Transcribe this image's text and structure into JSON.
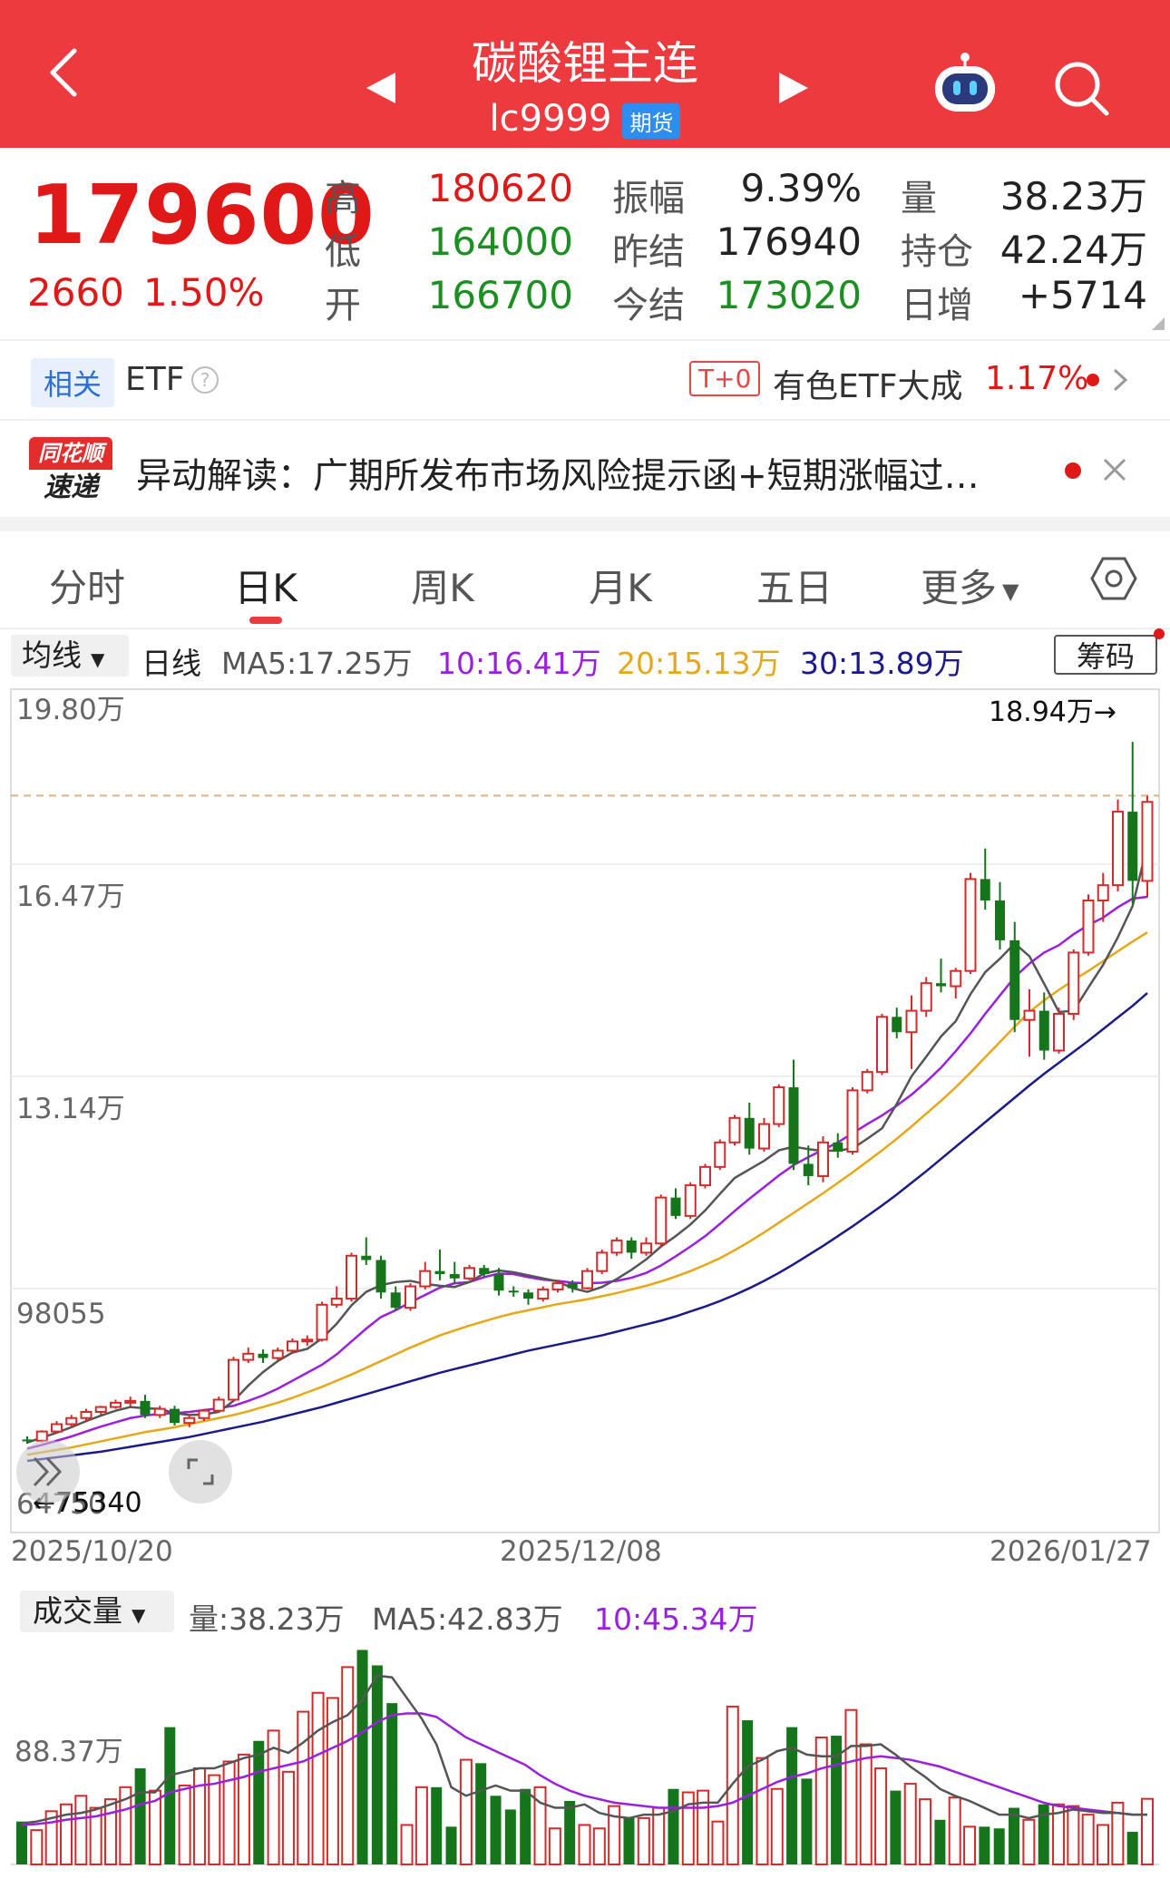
{
  "header": {
    "title": "碳酸锂主连",
    "code": "lc9999",
    "tag": "期货",
    "colors": {
      "bg": "#ec3a3f"
    }
  },
  "quote": {
    "price": "179600",
    "change": "2660",
    "change_pct": "1.50%",
    "stats": [
      {
        "label": "高",
        "value": "180620",
        "color": "red"
      },
      {
        "label": "振幅",
        "value": "9.39%",
        "color": "black"
      },
      {
        "label": "量",
        "value": "38.23万",
        "color": "black"
      },
      {
        "label": "低",
        "value": "164000",
        "color": "green"
      },
      {
        "label": "昨结",
        "value": "176940",
        "color": "black"
      },
      {
        "label": "持仓",
        "value": "42.24万",
        "color": "black"
      },
      {
        "label": "开",
        "value": "166700",
        "color": "green"
      },
      {
        "label": "今结",
        "value": "173020",
        "color": "green"
      },
      {
        "label": "日增",
        "value": "+5714",
        "color": "black"
      }
    ]
  },
  "related": {
    "tag": "相关",
    "label": "ETF",
    "t0": "T+0",
    "etf_name": "有色ETF大成",
    "etf_pct": "1.17%"
  },
  "news": {
    "logo_top": "同花顺",
    "logo_bottom": "速递",
    "text": "异动解读：广期所发布市场风险提示函+短期涨幅过…"
  },
  "tabs": [
    "分时",
    "日K",
    "周K",
    "月K",
    "五日",
    "更多"
  ],
  "active_tab": "日K",
  "ma_row": {
    "selector": "均线",
    "period": "日线",
    "ma5": "MA5:17.25万",
    "ma10": "10:16.41万",
    "ma20": "20:15.13万",
    "ma30": "30:13.89万",
    "chip_button": "筹码",
    "colors": {
      "ma5": "#555555",
      "ma10": "#9b1fe0",
      "ma20": "#e6a817",
      "ma30": "#1a1a8c"
    }
  },
  "kline_axis": {
    "y_labels": [
      "19.80万",
      "16.47万",
      "13.14万",
      "98055",
      "64750"
    ],
    "high_marker": "18.94万→",
    "low_marker": "←75340",
    "x_labels": [
      "2025/10/20",
      "2025/12/08",
      "2026/01/27"
    ]
  },
  "volume_row": {
    "selector": "成交量",
    "vol": "量:38.23万",
    "ma5": "MA5:42.83万",
    "ma10": "10:45.34万",
    "y_label": "88.37万"
  },
  "chart_data": [
    {
      "type": "candlestick",
      "x_start": "2025/10/20",
      "x_mid": "2025/12/08",
      "x_end": "2026/01/27",
      "y_unit": "元",
      "ylim": [
        64750,
        198000
      ],
      "candles": [
        [
          75500,
          76000,
          74800,
          75340
        ],
        [
          75300,
          77000,
          75000,
          76800
        ],
        [
          76800,
          78500,
          76500,
          78000
        ],
        [
          78000,
          79500,
          77500,
          79000
        ],
        [
          79000,
          80500,
          78500,
          80000
        ],
        [
          80000,
          81000,
          79500,
          80800
        ],
        [
          80800,
          82000,
          80500,
          81500
        ],
        [
          81500,
          82500,
          80800,
          81800
        ],
        [
          81800,
          82800,
          79000,
          79500
        ],
        [
          79500,
          81000,
          79000,
          80500
        ],
        [
          80500,
          81000,
          77800,
          78200
        ],
        [
          78200,
          79500,
          77500,
          79000
        ],
        [
          79000,
          80500,
          78500,
          80200
        ],
        [
          80200,
          82500,
          80000,
          82000
        ],
        [
          82000,
          89000,
          81800,
          88500
        ],
        [
          88500,
          90500,
          88000,
          89500
        ],
        [
          89500,
          90200,
          88000,
          88800
        ],
        [
          88800,
          90500,
          88500,
          90000
        ],
        [
          90000,
          92000,
          89500,
          91500
        ],
        [
          91500,
          92500,
          90800,
          91800
        ],
        [
          91800,
          98000,
          91500,
          97500
        ],
        [
          97500,
          100500,
          97000,
          98500
        ],
        [
          98500,
          106000,
          98000,
          105500
        ],
        [
          105500,
          108500,
          104000,
          104800
        ],
        [
          104800,
          105500,
          98500,
          99500
        ],
        [
          99500,
          100500,
          96500,
          97000
        ],
        [
          97000,
          101000,
          96500,
          100500
        ],
        [
          100500,
          104500,
          100000,
          103000
        ],
        [
          103000,
          106500,
          101500,
          102500
        ],
        [
          102500,
          104500,
          101000,
          101800
        ],
        [
          101800,
          104000,
          101500,
          103500
        ],
        [
          103500,
          104000,
          102000,
          102500
        ],
        [
          102500,
          103500,
          99000,
          99800
        ],
        [
          99800,
          100500,
          98800,
          99500
        ],
        [
          99500,
          100000,
          97500,
          98500
        ],
        [
          98500,
          100500,
          98000,
          100000
        ],
        [
          100000,
          101500,
          99500,
          101000
        ],
        [
          101000,
          101500,
          99500,
          100200
        ],
        [
          100200,
          103500,
          100000,
          103000
        ],
        [
          103000,
          106500,
          102500,
          106000
        ],
        [
          106000,
          108500,
          105500,
          108000
        ],
        [
          108000,
          108500,
          105000,
          106000
        ],
        [
          106000,
          108500,
          105500,
          107500
        ],
        [
          107500,
          115500,
          107000,
          115000
        ],
        [
          115000,
          116500,
          111500,
          112000
        ],
        [
          112000,
          117500,
          111500,
          117000
        ],
        [
          117000,
          120500,
          116500,
          120000
        ],
        [
          120000,
          124500,
          119500,
          124000
        ],
        [
          124000,
          128500,
          123500,
          128000
        ],
        [
          128000,
          130500,
          122000,
          123000
        ],
        [
          123000,
          128000,
          122500,
          127000
        ],
        [
          127000,
          133500,
          126500,
          133000
        ],
        [
          133000,
          137500,
          119500,
          120500
        ],
        [
          120500,
          123500,
          117000,
          118500
        ],
        [
          118500,
          125000,
          117500,
          124000
        ],
        [
          124000,
          125500,
          121500,
          122500
        ],
        [
          122500,
          133000,
          122000,
          132500
        ],
        [
          132500,
          136000,
          132000,
          135500
        ],
        [
          135500,
          145000,
          135000,
          144500
        ],
        [
          144500,
          146000,
          141000,
          142000
        ],
        [
          142000,
          148000,
          136000,
          145500
        ],
        [
          145500,
          151000,
          144500,
          150000
        ],
        [
          150000,
          154000,
          148500,
          149500
        ],
        [
          149500,
          152500,
          147500,
          152000
        ],
        [
          152000,
          168000,
          151500,
          167000
        ],
        [
          167000,
          172000,
          162000,
          163500
        ],
        [
          163500,
          166500,
          155500,
          157000
        ],
        [
          157000,
          160000,
          142000,
          144000
        ],
        [
          144000,
          149000,
          138000,
          145500
        ],
        [
          145500,
          148500,
          137500,
          139000
        ],
        [
          139000,
          146000,
          138500,
          145000
        ],
        [
          145000,
          155500,
          144000,
          155000
        ],
        [
          155000,
          164500,
          154500,
          163500
        ],
        [
          163500,
          168000,
          160000,
          166000
        ],
        [
          166000,
          180000,
          165000,
          178000
        ],
        [
          178000,
          189400,
          163000,
          166700
        ],
        [
          166700,
          180620,
          164000,
          179600
        ]
      ],
      "ma5": [
        75000,
        75800,
        76600,
        77500,
        78500,
        79400,
        80200,
        80800,
        80600,
        80500,
        79800,
        79500,
        79600,
        80000,
        81800,
        84300,
        86500,
        88300,
        89700,
        90300,
        92000,
        94400,
        97400,
        99600,
        100700,
        101200,
        101400,
        100900,
        100600,
        100400,
        101200,
        102600,
        103100,
        102800,
        102300,
        101800,
        101300,
        100200,
        99600,
        100400,
        101700,
        103200,
        104900,
        107000,
        108700,
        110600,
        112900,
        115600,
        118200,
        119600,
        121000,
        122700,
        123300,
        122900,
        122600,
        122700,
        123000,
        124600,
        126300,
        130300,
        134800,
        138000,
        141300,
        143800,
        148200,
        151800,
        154000,
        156500,
        154400,
        149900,
        145300,
        145500,
        149300,
        153000,
        157500,
        162600,
        172500
      ],
      "ma10": [
        74000,
        74600,
        75300,
        76000,
        76800,
        77600,
        78300,
        79000,
        79400,
        79700,
        79800,
        80000,
        80300,
        80600,
        81000,
        81800,
        82700,
        83800,
        85100,
        86400,
        87700,
        89400,
        91500,
        93600,
        95500,
        96600,
        97900,
        99100,
        100300,
        101000,
        101200,
        102000,
        102600,
        102500,
        102000,
        101600,
        101400,
        101100,
        101000,
        101100,
        101400,
        101900,
        102700,
        103900,
        105400,
        107000,
        108700,
        110700,
        112800,
        114800,
        116700,
        118600,
        120300,
        121600,
        122800,
        124000,
        125500,
        127000,
        128400,
        130000,
        131800,
        133900,
        136200,
        138900,
        141800,
        145000,
        148000,
        151000,
        153200,
        155000,
        156200,
        158000,
        159500,
        160700,
        162400,
        163800,
        164100
      ],
      "ma20": [
        73000,
        73400,
        73800,
        74200,
        74700,
        75200,
        75700,
        76200,
        76700,
        77100,
        77500,
        78000,
        78500,
        79000,
        79500,
        80100,
        80800,
        81500,
        82300,
        83200,
        84100,
        85100,
        86100,
        87200,
        88300,
        89400,
        90500,
        91500,
        92500,
        93300,
        94100,
        94800,
        95500,
        96100,
        96600,
        97100,
        97600,
        98000,
        98400,
        98900,
        99400,
        100000,
        100600,
        101300,
        102100,
        103000,
        104000,
        105100,
        106400,
        107800,
        109300,
        110900,
        112500,
        114100,
        115700,
        117400,
        119100,
        120900,
        122700,
        124600,
        126600,
        128700,
        130800,
        133000,
        135400,
        137900,
        140400,
        142900,
        145300,
        147200,
        148900,
        150500,
        152000,
        153600,
        155200,
        156800,
        158300
      ],
      "ma30": [
        72000,
        72300,
        72600,
        72900,
        73200,
        73500,
        73900,
        74300,
        74700,
        75100,
        75500,
        75900,
        76400,
        76900,
        77400,
        77900,
        78400,
        79000,
        79600,
        80200,
        80800,
        81500,
        82200,
        82900,
        83600,
        84300,
        85000,
        85700,
        86400,
        87000,
        87600,
        88200,
        88800,
        89400,
        90000,
        90500,
        91000,
        91500,
        92000,
        92500,
        93100,
        93700,
        94300,
        94900,
        95600,
        96400,
        97200,
        98100,
        99100,
        100200,
        101400,
        102700,
        104100,
        105600,
        107100,
        108700,
        110300,
        112000,
        113700,
        115500,
        117400,
        119300,
        121300,
        123300,
        125300,
        127300,
        129300,
        131300,
        133300,
        135200,
        137000,
        138800,
        140600,
        142500,
        144400,
        146300,
        148400
      ]
    },
    {
      "type": "bar",
      "y_unit": "手",
      "ylim": [
        0,
        1300000
      ],
      "volume": [
        250000,
        200000,
        310000,
        350000,
        400000,
        330000,
        380000,
        450000,
        560000,
        430000,
        800000,
        460000,
        560000,
        520000,
        600000,
        640000,
        720000,
        780000,
        540000,
        890000,
        1000000,
        970000,
        1150000,
        1250000,
        1160000,
        940000,
        230000,
        450000,
        450000,
        220000,
        610000,
        590000,
        400000,
        320000,
        440000,
        450000,
        210000,
        370000,
        230000,
        210000,
        340000,
        270000,
        270000,
        330000,
        440000,
        420000,
        430000,
        250000,
        920000,
        840000,
        620000,
        440000,
        800000,
        500000,
        740000,
        750000,
        900000,
        700000,
        560000,
        430000,
        470000,
        380000,
        260000,
        390000,
        220000,
        220000,
        210000,
        330000,
        260000,
        350000,
        350000,
        340000,
        290000,
        230000,
        360000,
        190000,
        382300
      ],
      "ma5": [
        240000,
        250000,
        270000,
        290000,
        300000,
        320000,
        350000,
        380000,
        420000,
        420000,
        520000,
        540000,
        560000,
        560000,
        590000,
        620000,
        640000,
        680000,
        650000,
        710000,
        780000,
        830000,
        870000,
        960000,
        1100000,
        1090000,
        970000,
        850000,
        700000,
        450000,
        400000,
        430000,
        460000,
        430000,
        430000,
        360000,
        330000,
        330000,
        350000,
        300000,
        280000,
        270000,
        290000,
        290000,
        310000,
        350000,
        360000,
        360000,
        470000,
        570000,
        610000,
        660000,
        680000,
        640000,
        630000,
        630000,
        690000,
        690000,
        700000,
        640000,
        570000,
        510000,
        440000,
        400000,
        370000,
        330000,
        290000,
        290000,
        270000,
        290000,
        300000,
        320000,
        310000,
        300000,
        300000,
        290000,
        290000
      ],
      "ma10": [
        230000,
        235000,
        245000,
        260000,
        270000,
        280000,
        300000,
        320000,
        350000,
        370000,
        420000,
        440000,
        460000,
        470000,
        490000,
        510000,
        540000,
        560000,
        580000,
        600000,
        640000,
        680000,
        720000,
        770000,
        830000,
        870000,
        880000,
        880000,
        860000,
        800000,
        740000,
        700000,
        660000,
        620000,
        580000,
        520000,
        470000,
        430000,
        400000,
        380000,
        360000,
        350000,
        340000,
        330000,
        330000,
        330000,
        330000,
        340000,
        360000,
        400000,
        440000,
        480000,
        510000,
        530000,
        560000,
        580000,
        600000,
        620000,
        630000,
        620000,
        610000,
        590000,
        570000,
        540000,
        510000,
        480000,
        450000,
        420000,
        390000,
        360000,
        340000,
        330000,
        320000,
        310000,
        300000,
        290000,
        290000
      ]
    }
  ]
}
